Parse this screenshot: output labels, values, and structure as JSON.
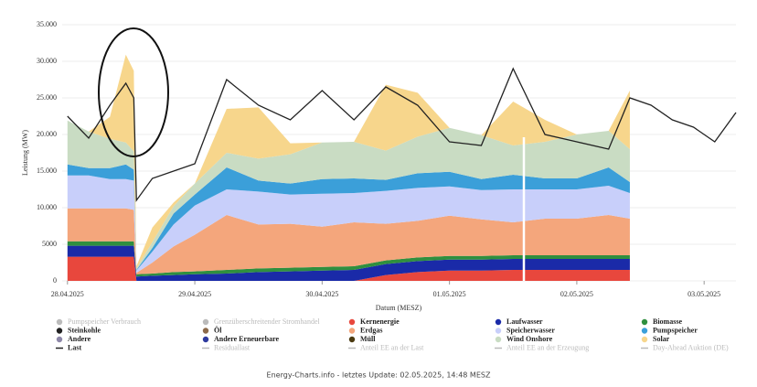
{
  "chart_data": {
    "type": "stacked_area",
    "y_label": "Leistung (MW)",
    "x_label": "Datum (MESZ)",
    "footer": "Energy-Charts.info - letztes Update: 02.05.2025, 14:48 MESZ",
    "grid": true,
    "xlim": [
      -1,
      126
    ],
    "xticks": [
      {
        "value": 0,
        "label": "28.04.2025"
      },
      {
        "value": 24,
        "label": "29.04.2025"
      },
      {
        "value": 48,
        "label": "30.04.2025"
      },
      {
        "value": 72,
        "label": "01.05.2025"
      },
      {
        "value": 96,
        "label": "02.05.2025"
      },
      {
        "value": 120,
        "label": "03.05.2025"
      }
    ],
    "ylim": [
      0,
      35000
    ],
    "yticks": [
      0,
      5000,
      {
        "value": 10000,
        "label": "10.000"
      },
      {
        "value": 15000,
        "label": "15.000"
      },
      {
        "value": 20000,
        "label": "20.000"
      },
      {
        "value": 25000,
        "label": "25.000"
      },
      {
        "value": 30000,
        "label": "30.000"
      },
      {
        "value": 35000,
        "label": "35.000"
      }
    ],
    "x": [
      0,
      4,
      8,
      11,
      12.5,
      13,
      16,
      20,
      24,
      30,
      36,
      42,
      48,
      54,
      60,
      66,
      72,
      78,
      84,
      90,
      96,
      102,
      106,
      110,
      114,
      118,
      122,
      126
    ],
    "series": [
      {
        "name": "Pumpspeicher Verbrauch",
        "color": "#bbbbbb",
        "disabled": true
      },
      {
        "name": "Grenzüberschreitender Stromhandel",
        "color": "#bbbbbb",
        "disabled": true
      },
      {
        "name": "Kernenergie",
        "color": "#e8473d",
        "values": [
          3300,
          3300,
          3300,
          3300,
          3300,
          0,
          0,
          0,
          0,
          0,
          0,
          0,
          0,
          0,
          800,
          1200,
          1400,
          1400,
          1500,
          1500,
          1500,
          1500,
          1500,
          null,
          null,
          null,
          null,
          null
        ]
      },
      {
        "name": "Laufwasser",
        "color": "#1a2aa8",
        "values": [
          1500,
          1500,
          1500,
          1500,
          1500,
          600,
          700,
          800,
          900,
          1000,
          1200,
          1300,
          1400,
          1500,
          1500,
          1500,
          1500,
          1500,
          1500,
          1500,
          1500,
          1500,
          1500,
          null,
          null,
          null,
          null,
          null
        ]
      },
      {
        "name": "Biomasse",
        "color": "#2f8f3f",
        "values": [
          600,
          600,
          600,
          600,
          600,
          300,
          300,
          400,
          400,
          500,
          500,
          500,
          500,
          500,
          500,
          500,
          500,
          500,
          500,
          500,
          500,
          500,
          500,
          null,
          null,
          null,
          null,
          null
        ]
      },
      {
        "name": "Steinkohle",
        "color": "#222222"
      },
      {
        "name": "Öl",
        "color": "#8c6a4a"
      },
      {
        "name": "Erdgas",
        "color": "#f4a67c",
        "values": [
          4500,
          4500,
          4500,
          4500,
          4300,
          200,
          1500,
          3500,
          5000,
          7500,
          6000,
          6000,
          5500,
          6000,
          5000,
          5000,
          5500,
          5000,
          4500,
          5000,
          5000,
          5500,
          5000,
          null,
          null,
          null,
          null,
          null
        ]
      },
      {
        "name": "Speicherwasser",
        "color": "#c8cffa",
        "values": [
          4500,
          4500,
          4000,
          4000,
          4000,
          300,
          1500,
          3000,
          4000,
          3500,
          4500,
          4000,
          4500,
          4000,
          4500,
          4500,
          4000,
          4000,
          4500,
          4000,
          4000,
          4000,
          3500,
          null,
          null,
          null,
          null,
          null
        ]
      },
      {
        "name": "Pumpspeicher",
        "color": "#3b9fd9",
        "values": [
          1500,
          1000,
          1500,
          2000,
          1500,
          100,
          500,
          1500,
          1500,
          3000,
          1500,
          1500,
          2000,
          2000,
          1500,
          2000,
          2000,
          1500,
          2000,
          1500,
          1500,
          2500,
          1500,
          null,
          null,
          null,
          null,
          null
        ]
      },
      {
        "name": "Andere",
        "color": "#8d87a8"
      },
      {
        "name": "Andere Erneuerbare",
        "color": "#2e3a9e"
      },
      {
        "name": "Müll",
        "color": "#4b3a10"
      },
      {
        "name": "Wind Onshore",
        "color": "#c9dcc3",
        "values": [
          6000,
          5000,
          4000,
          3000,
          2500,
          200,
          800,
          1000,
          1500,
          2000,
          3000,
          4000,
          5000,
          5000,
          4000,
          5000,
          6000,
          6000,
          4000,
          5000,
          6000,
          5000,
          4500,
          null,
          null,
          null,
          null,
          null
        ]
      },
      {
        "name": "Solar",
        "color": "#f7d68c",
        "values": [
          0,
          0,
          3000,
          12000,
          11000,
          300,
          2000,
          500,
          0,
          6000,
          7000,
          1500,
          0,
          0,
          9000,
          6000,
          0,
          0,
          6000,
          3000,
          0,
          0,
          8000,
          null,
          null,
          null,
          null,
          null
        ]
      },
      {
        "name": "Last",
        "color": "#222222",
        "line": true,
        "values": [
          22500,
          19500,
          24000,
          27000,
          25000,
          11000,
          14000,
          15000,
          16000,
          27500,
          24000,
          22000,
          26000,
          22000,
          26500,
          24000,
          19000,
          18500,
          29000,
          20000,
          19000,
          18000,
          25000,
          24000,
          22000,
          21000,
          19000,
          23000
        ]
      },
      {
        "name": "Residuallast",
        "color": "#bbbbbb",
        "line": true,
        "disabled": true
      },
      {
        "name": "Anteil EE an der Last",
        "color": "#bbbbbb",
        "line": true,
        "disabled": true
      },
      {
        "name": "Anteil EE an der Erzeugung",
        "color": "#bbbbbb",
        "line": true,
        "disabled": true
      },
      {
        "name": "Day-Ahead Auktion (DE)",
        "color": "#bbbbbb",
        "line": true,
        "disabled": true
      }
    ]
  }
}
